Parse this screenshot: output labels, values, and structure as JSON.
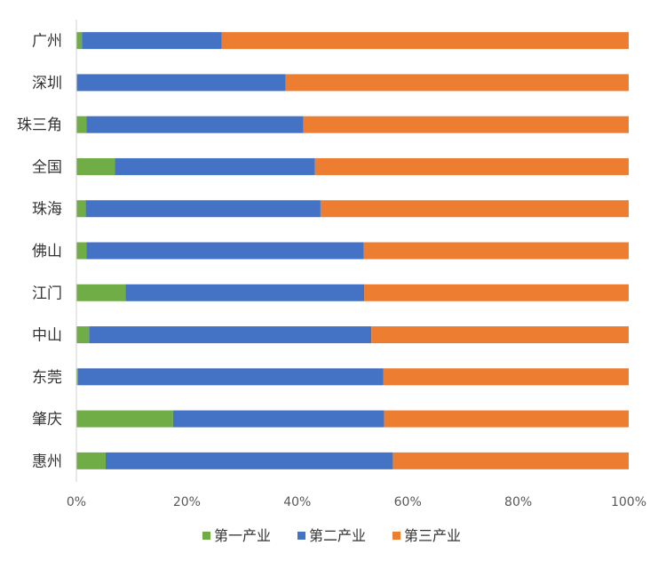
{
  "chart_data": {
    "type": "bar",
    "orientation": "horizontal",
    "stacked": "percent",
    "categories": [
      "广州",
      "深圳",
      "珠三角",
      "全国",
      "珠海",
      "佛山",
      "江门",
      "中山",
      "东莞",
      "肇庆",
      "惠州"
    ],
    "series": [
      {
        "name": "第一产业",
        "color": "#70ad47",
        "values": [
          1.0,
          0.1,
          1.8,
          7.0,
          1.7,
          1.8,
          8.9,
          2.3,
          0.3,
          17.5,
          5.3
        ]
      },
      {
        "name": "第二产业",
        "color": "#4472c4",
        "values": [
          25.3,
          37.8,
          39.3,
          36.2,
          42.5,
          50.2,
          43.2,
          51.1,
          55.3,
          38.2,
          52.0
        ]
      },
      {
        "name": "第三产业",
        "color": "#ed7d31",
        "values": [
          73.7,
          62.1,
          58.9,
          56.8,
          55.8,
          48.0,
          47.9,
          46.6,
          44.4,
          44.3,
          42.7
        ]
      }
    ],
    "x_ticks": [
      "0%",
      "20%",
      "40%",
      "60%",
      "80%",
      "100%"
    ],
    "xlim": [
      0,
      100
    ],
    "title": "",
    "xlabel": "",
    "ylabel": "",
    "grid": false,
    "legend_position": "bottom"
  }
}
